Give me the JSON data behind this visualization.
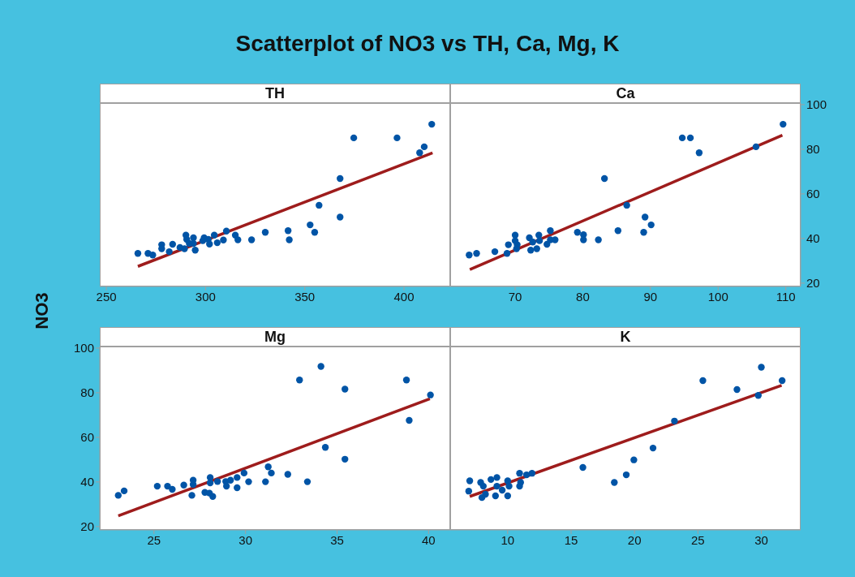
{
  "chart_data": [
    {
      "type": "scatter",
      "title": "Scatterplot of NO3 vs TH, Ca, Mg, K",
      "subtitle": "TH",
      "ylabel": "NO3",
      "xlim": [
        246.7,
        423.3
      ],
      "xticks": [
        250,
        300,
        350,
        400
      ],
      "ylim": [
        18.5,
        100.7
      ],
      "yticks": [
        20,
        40,
        60,
        80,
        100
      ],
      "tick_labels": "x",
      "series": [
        {
          "marker": "circle",
          "color": "#0054a6",
          "x": [
            265.9,
            271.0,
            273.4,
            277.9,
            277.9,
            281.7,
            283.4,
            287.1,
            289.4,
            290.1,
            290.5,
            291.8,
            293.9,
            293.9,
            294.8,
            298.6,
            299.3,
            301.4,
            302.0,
            304.4,
            305.9,
            309.0,
            310.5,
            315.0,
            316.3,
            323.2,
            330.1,
            341.6,
            342.2,
            352.7,
            355.0,
            357.2,
            367.8,
            367.8,
            374.7,
            396.5,
            407.9,
            410.2,
            414.0
          ],
          "values": [
            33.3,
            33.3,
            32.6,
            37.2,
            35.4,
            34.1,
            37.4,
            36.0,
            35.4,
            41.5,
            39.6,
            37.8,
            40.3,
            37.8,
            34.8,
            39.0,
            40.3,
            39.6,
            37.5,
            41.5,
            38.1,
            39.3,
            43.3,
            41.5,
            39.4,
            39.4,
            42.8,
            43.5,
            39.4,
            46.1,
            42.8,
            54.9,
            49.6,
            66.9,
            85.1,
            85.1,
            78.4,
            81.1,
            91.2
          ]
        },
        {
          "type": "line",
          "color": "#9e1c1c",
          "x": [
            265.9,
            414.4
          ],
          "values": [
            27.5,
            78.4
          ]
        }
      ]
    },
    {
      "type": "scatter",
      "subtitle": "Ca",
      "xlim": [
        60.4,
        112.2
      ],
      "xticks": [
        70,
        80,
        90,
        100,
        110
      ],
      "ylim": [
        18.5,
        100.7
      ],
      "yticks": [
        20,
        40,
        60,
        80,
        100
      ],
      "series": [
        {
          "marker": "circle",
          "color": "#0054a6",
          "x": [
            63.2,
            64.3,
            67.0,
            68.8,
            69.0,
            70.0,
            70.0,
            70.3,
            70.2,
            72.1,
            72.3,
            72.6,
            73.2,
            73.5,
            73.6,
            74.7,
            75.2,
            75.2,
            75.9,
            79.2,
            80.1,
            80.1,
            82.3,
            83.2,
            85.2,
            86.5,
            89.0,
            89.2,
            90.1,
            94.7,
            95.9,
            97.2,
            105.6,
            109.6
          ],
          "values": [
            32.6,
            33.3,
            34.1,
            33.3,
            37.2,
            41.5,
            39.0,
            37.2,
            35.4,
            40.3,
            34.8,
            38.4,
            35.4,
            41.5,
            39.0,
            37.4,
            43.5,
            39.4,
            39.4,
            42.8,
            41.7,
            39.4,
            39.4,
            66.9,
            43.5,
            54.9,
            42.8,
            49.6,
            46.1,
            85.1,
            85.1,
            78.4,
            81.1,
            91.2
          ]
        },
        {
          "type": "line",
          "color": "#9e1c1c",
          "x": [
            63.3,
            109.5
          ],
          "values": [
            26.1,
            86.3
          ]
        }
      ]
    },
    {
      "type": "scatter",
      "subtitle": "Mg",
      "xlim": [
        22.04,
        41.18
      ],
      "xticks": [
        25,
        30,
        35,
        40
      ],
      "ylim": [
        18.5,
        100.7
      ],
      "yticks": [
        20,
        40,
        60,
        80,
        100
      ],
      "series": [
        {
          "marker": "circle",
          "color": "#0054a6",
          "x": [
            23.05,
            23.37,
            25.18,
            25.74,
            26.0,
            26.63,
            27.14,
            27.14,
            27.07,
            27.78,
            28.07,
            28.07,
            28.03,
            28.21,
            28.47,
            28.92,
            28.96,
            29.18,
            29.54,
            29.54,
            29.92,
            30.17,
            31.09,
            31.24,
            31.41,
            32.31,
            32.95,
            33.38,
            34.12,
            34.36,
            35.43,
            35.43,
            38.79,
            38.94,
            40.1
          ],
          "values": [
            34.0,
            36.0,
            38.1,
            38.1,
            36.7,
            38.6,
            40.8,
            38.9,
            34.0,
            35.3,
            42.0,
            39.6,
            35.0,
            33.5,
            40.2,
            40.2,
            38.1,
            40.8,
            42.0,
            37.4,
            44.0,
            40.1,
            40.1,
            46.8,
            44.0,
            43.4,
            85.7,
            40.1,
            91.8,
            55.5,
            81.6,
            50.2,
            85.7,
            67.6,
            79.0
          ]
        },
        {
          "type": "line",
          "color": "#9e1c1c",
          "x": [
            23.05,
            40.07
          ],
          "values": [
            24.8,
            77.3
          ]
        }
      ]
    },
    {
      "type": "scatter",
      "subtitle": "K",
      "xlim": [
        5.47,
        33.1
      ],
      "xticks": [
        10,
        15,
        20,
        25,
        30
      ],
      "ylim": [
        18.5,
        100.7
      ],
      "yticks": [
        20,
        40,
        60,
        80,
        100
      ],
      "tick_labels": "x",
      "series": [
        {
          "marker": "circle",
          "color": "#0054a6",
          "x": [
            7.01,
            6.93,
            7.87,
            8.08,
            8.25,
            7.97,
            8.68,
            9.15,
            9.15,
            9.04,
            9.57,
            10.0,
            10.11,
            10.0,
            10.94,
            11.02,
            10.94,
            11.49,
            11.92,
            15.93,
            18.41,
            19.35,
            19.95,
            21.46,
            23.15,
            25.39,
            28.08,
            29.76,
            30.0,
            31.64
          ],
          "values": [
            40.5,
            35.9,
            39.8,
            38.1,
            34.5,
            33.0,
            41.1,
            42.0,
            38.1,
            33.8,
            36.3,
            40.5,
            38.1,
            33.8,
            43.9,
            39.8,
            38.1,
            43.2,
            43.9,
            46.5,
            39.8,
            43.2,
            49.9,
            55.2,
            67.3,
            85.4,
            81.4,
            78.8,
            91.4,
            85.4
          ]
        },
        {
          "type": "line",
          "color": "#9e1c1c",
          "x": [
            7.01,
            31.6
          ],
          "values": [
            33.5,
            83.3
          ]
        }
      ]
    }
  ]
}
